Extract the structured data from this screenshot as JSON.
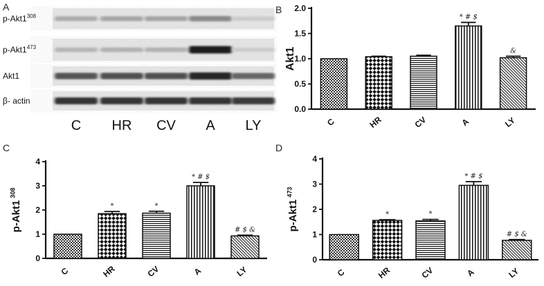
{
  "panels": {
    "a": "A",
    "b": "B",
    "c": "C",
    "d": "D"
  },
  "blot": {
    "rows": [
      {
        "label": "p-Akt1",
        "sup": "308",
        "intensity": [
          0.3,
          0.32,
          0.33,
          0.45,
          0.15
        ]
      },
      {
        "label": "p-Akt1",
        "sup": "473",
        "intensity": [
          0.25,
          0.27,
          0.27,
          0.95,
          0.15
        ]
      },
      {
        "label": "Akt1",
        "sup": "",
        "intensity": [
          0.7,
          0.72,
          0.72,
          0.92,
          0.62
        ]
      },
      {
        "label": "β- actin",
        "sup": "",
        "intensity": [
          0.85,
          0.85,
          0.85,
          0.85,
          0.82
        ]
      }
    ],
    "categories": [
      "C",
      "HR",
      "CV",
      "A",
      "LY"
    ]
  },
  "chart_data": [
    {
      "id": "B",
      "type": "bar",
      "ylabel": "Akt1",
      "ylabel_sup": "",
      "categories": [
        "C",
        "HR",
        "CV",
        "A",
        "LY"
      ],
      "values": [
        1.0,
        1.04,
        1.05,
        1.65,
        1.02
      ],
      "errors": [
        0.0,
        0.01,
        0.02,
        0.07,
        0.03
      ],
      "annotations": [
        "",
        "",
        "",
        "* # $",
        "&"
      ],
      "patterns": [
        "checker",
        "diamond",
        "hlines",
        "vlines",
        "diag"
      ],
      "ylim": [
        0.0,
        2.0
      ],
      "yticks": [
        "0.0",
        "0.5",
        "1.0",
        "1.5",
        "2.0"
      ]
    },
    {
      "id": "C",
      "type": "bar",
      "ylabel": "p-Akt1",
      "ylabel_sup": "308",
      "categories": [
        "C",
        "HR",
        "CV",
        "A",
        "LY"
      ],
      "values": [
        1.0,
        1.85,
        1.87,
        3.0,
        0.93
      ],
      "errors": [
        0.0,
        0.09,
        0.08,
        0.14,
        0.03
      ],
      "annotations": [
        "",
        "*",
        "*",
        "* # $",
        "# $ &"
      ],
      "patterns": [
        "checker",
        "diamond",
        "hlines",
        "vlines",
        "diag"
      ],
      "ylim": [
        0,
        4
      ],
      "yticks": [
        "0",
        "1",
        "2",
        "3",
        "4"
      ]
    },
    {
      "id": "D",
      "type": "bar",
      "ylabel": "p-Akt1",
      "ylabel_sup": "473",
      "categories": [
        "C",
        "HR",
        "CV",
        "A",
        "LY"
      ],
      "values": [
        1.0,
        1.56,
        1.54,
        2.95,
        0.77
      ],
      "errors": [
        0.0,
        0.03,
        0.06,
        0.15,
        0.03
      ],
      "annotations": [
        "",
        "*",
        "*",
        "* # $",
        "# $ &"
      ],
      "patterns": [
        "checker",
        "diamond",
        "hlines",
        "vlines",
        "diag"
      ],
      "ylim": [
        0,
        4
      ],
      "yticks": [
        "0",
        "1",
        "2",
        "3",
        "4"
      ]
    }
  ]
}
